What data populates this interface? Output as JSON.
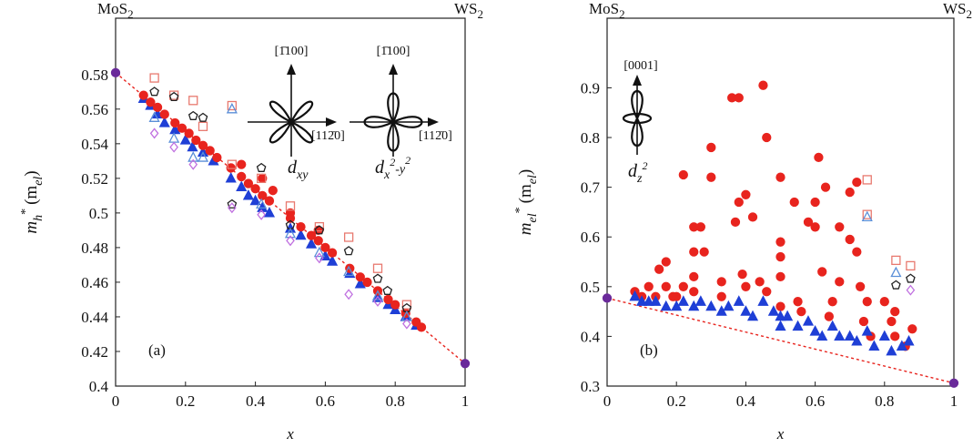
{
  "chart_data": [
    {
      "type": "scatter",
      "panel_label": "(a)",
      "top_left": [
        "MoS",
        "2"
      ],
      "top_right": [
        "WS",
        "2"
      ],
      "xlabel": "x",
      "ylabel": [
        "m",
        "h",
        "*",
        "(m",
        "el",
        ")"
      ],
      "xlim": [
        0,
        1
      ],
      "ylim": [
        0.4,
        0.6125
      ],
      "xticks": [
        0,
        0.2,
        0.4,
        0.6,
        0.8,
        1
      ],
      "yticks": [
        0.4,
        0.42,
        0.44,
        0.46,
        0.48,
        0.5,
        0.52,
        0.54,
        0.56,
        0.58
      ],
      "insets": [
        {
          "up": "[1̄100]",
          "right": "[112̄0]",
          "orbital": [
            "d",
            "xy"
          ]
        },
        {
          "up": "[1̄100]",
          "right": "[112̄0]",
          "orbital": [
            "d",
            "x",
            "2",
            "-y",
            "2"
          ]
        }
      ],
      "series": [
        {
          "marker": "line",
          "color": "#e8241e",
          "x": [
            0,
            1
          ],
          "values": [
            0.581,
            0.413
          ]
        },
        {
          "marker": "triangle",
          "color": "#1f3fd6",
          "filled": true,
          "x": [
            0.08,
            0.1,
            0.12,
            0.14,
            0.17,
            0.2,
            0.22,
            0.25,
            0.28,
            0.33,
            0.36,
            0.38,
            0.4,
            0.42,
            0.44,
            0.5,
            0.53,
            0.56,
            0.6,
            0.62,
            0.67,
            0.7,
            0.75,
            0.78,
            0.8,
            0.83,
            0.86
          ],
          "values": [
            0.566,
            0.562,
            0.557,
            0.552,
            0.548,
            0.542,
            0.538,
            0.535,
            0.53,
            0.52,
            0.515,
            0.51,
            0.507,
            0.503,
            0.5,
            0.491,
            0.487,
            0.482,
            0.475,
            0.472,
            0.465,
            0.459,
            0.451,
            0.447,
            0.444,
            0.44,
            0.435
          ]
        },
        {
          "marker": "circle",
          "color": "#e8241e",
          "filled": true,
          "x": [
            0.08,
            0.1,
            0.12,
            0.14,
            0.17,
            0.19,
            0.21,
            0.23,
            0.25,
            0.27,
            0.29,
            0.33,
            0.36,
            0.36,
            0.38,
            0.4,
            0.42,
            0.42,
            0.44,
            0.45,
            0.5,
            0.5,
            0.53,
            0.56,
            0.58,
            0.58,
            0.6,
            0.62,
            0.67,
            0.7,
            0.72,
            0.75,
            0.78,
            0.8,
            0.83,
            0.86,
            0.875
          ],
          "values": [
            0.568,
            0.564,
            0.561,
            0.557,
            0.552,
            0.549,
            0.546,
            0.542,
            0.539,
            0.536,
            0.532,
            0.526,
            0.521,
            0.528,
            0.517,
            0.514,
            0.51,
            0.52,
            0.507,
            0.513,
            0.497,
            0.5,
            0.492,
            0.487,
            0.484,
            0.49,
            0.48,
            0.477,
            0.468,
            0.463,
            0.46,
            0.455,
            0.45,
            0.447,
            0.442,
            0.437,
            0.434
          ]
        },
        {
          "marker": "square",
          "color": "#e8796f",
          "x": [
            0.111,
            0.167,
            0.222,
            0.25,
            0.333,
            0.333,
            0.417,
            0.5,
            0.583,
            0.667,
            0.75,
            0.833
          ],
          "values": [
            0.578,
            0.568,
            0.565,
            0.55,
            0.562,
            0.528,
            0.52,
            0.504,
            0.492,
            0.486,
            0.468,
            0.447
          ]
        },
        {
          "marker": "pentagon",
          "color": "#222222",
          "x": [
            0.111,
            0.167,
            0.222,
            0.25,
            0.333,
            0.417,
            0.5,
            0.583,
            0.667,
            0.75,
            0.778,
            0.833
          ],
          "values": [
            0.57,
            0.567,
            0.556,
            0.555,
            0.505,
            0.526,
            0.493,
            0.49,
            0.478,
            0.462,
            0.455,
            0.445
          ]
        },
        {
          "marker": "triangle",
          "color": "#5b8fd8",
          "x": [
            0.111,
            0.167,
            0.222,
            0.25,
            0.333,
            0.417,
            0.5,
            0.583,
            0.667,
            0.75,
            0.833
          ],
          "values": [
            0.555,
            0.543,
            0.532,
            0.532,
            0.56,
            0.505,
            0.488,
            0.477,
            0.466,
            0.452,
            0.44
          ]
        },
        {
          "marker": "diamond",
          "color": "#c070e0",
          "x": [
            0.111,
            0.167,
            0.222,
            0.333,
            0.417,
            0.5,
            0.583,
            0.667,
            0.75,
            0.833
          ],
          "values": [
            0.546,
            0.538,
            0.528,
            0.503,
            0.499,
            0.484,
            0.474,
            0.453,
            0.449,
            0.436
          ]
        },
        {
          "marker": "circle",
          "color": "#6a2a9a",
          "filled": true,
          "x": [
            0,
            1
          ],
          "values": [
            0.581,
            0.413
          ]
        }
      ]
    },
    {
      "type": "scatter",
      "panel_label": "(b)",
      "top_left": [
        "MoS",
        "2"
      ],
      "top_right": [
        "WS",
        "2"
      ],
      "xlabel": "x",
      "ylabel": [
        "m",
        "el",
        "*",
        "(m",
        "el",
        ")"
      ],
      "xlim": [
        0,
        1
      ],
      "ylim": [
        0.3,
        1.04
      ],
      "xticks": [
        0,
        0.2,
        0.4,
        0.6,
        0.8,
        1
      ],
      "yticks": [
        0.3,
        0.4,
        0.5,
        0.6,
        0.7,
        0.8,
        0.9
      ],
      "insets": [
        {
          "up": "[0001]",
          "orbital": [
            "d",
            "z",
            "2"
          ]
        }
      ],
      "series": [
        {
          "marker": "line",
          "color": "#e8241e",
          "x": [
            0,
            1
          ],
          "values": [
            0.477,
            0.306
          ]
        },
        {
          "marker": "circle",
          "color": "#e8241e",
          "filled": true,
          "x": [
            0.08,
            0.1,
            0.12,
            0.14,
            0.15,
            0.17,
            0.17,
            0.19,
            0.2,
            0.22,
            0.22,
            0.25,
            0.25,
            0.25,
            0.25,
            0.27,
            0.28,
            0.3,
            0.3,
            0.33,
            0.33,
            0.36,
            0.38,
            0.37,
            0.38,
            0.39,
            0.4,
            0.4,
            0.42,
            0.44,
            0.45,
            0.46,
            0.46,
            0.5,
            0.5,
            0.5,
            0.5,
            0.5,
            0.54,
            0.55,
            0.56,
            0.58,
            0.6,
            0.6,
            0.61,
            0.62,
            0.63,
            0.64,
            0.65,
            0.67,
            0.67,
            0.7,
            0.7,
            0.72,
            0.72,
            0.73,
            0.74,
            0.75,
            0.76,
            0.8,
            0.82,
            0.83,
            0.83,
            0.86,
            0.88
          ],
          "values": [
            0.49,
            0.48,
            0.5,
            0.48,
            0.535,
            0.55,
            0.5,
            0.48,
            0.48,
            0.725,
            0.5,
            0.62,
            0.57,
            0.52,
            0.49,
            0.62,
            0.57,
            0.78,
            0.72,
            0.51,
            0.48,
            0.88,
            0.88,
            0.63,
            0.67,
            0.525,
            0.685,
            0.5,
            0.64,
            0.51,
            0.905,
            0.8,
            0.49,
            0.72,
            0.59,
            0.56,
            0.52,
            0.46,
            0.67,
            0.47,
            0.45,
            0.63,
            0.67,
            0.62,
            0.76,
            0.53,
            0.7,
            0.44,
            0.47,
            0.62,
            0.51,
            0.595,
            0.69,
            0.71,
            0.57,
            0.5,
            0.43,
            0.47,
            0.4,
            0.47,
            0.43,
            0.45,
            0.4,
            0.38,
            0.415
          ]
        },
        {
          "marker": "triangle",
          "color": "#1f3fd6",
          "filled": true,
          "x": [
            0.08,
            0.1,
            0.12,
            0.14,
            0.17,
            0.2,
            0.22,
            0.25,
            0.27,
            0.3,
            0.33,
            0.35,
            0.38,
            0.4,
            0.42,
            0.45,
            0.48,
            0.5,
            0.5,
            0.52,
            0.55,
            0.58,
            0.6,
            0.62,
            0.65,
            0.67,
            0.7,
            0.72,
            0.75,
            0.77,
            0.8,
            0.82,
            0.85,
            0.87
          ],
          "values": [
            0.48,
            0.47,
            0.47,
            0.47,
            0.46,
            0.46,
            0.47,
            0.46,
            0.47,
            0.46,
            0.45,
            0.46,
            0.47,
            0.45,
            0.44,
            0.47,
            0.45,
            0.44,
            0.42,
            0.44,
            0.42,
            0.43,
            0.41,
            0.4,
            0.42,
            0.4,
            0.4,
            0.39,
            0.41,
            0.38,
            0.4,
            0.37,
            0.38,
            0.39
          ]
        },
        {
          "marker": "square",
          "color": "#e8796f",
          "x": [
            0.75,
            0.75,
            0.833,
            0.875
          ],
          "values": [
            0.715,
            0.645,
            0.553,
            0.542
          ]
        },
        {
          "marker": "triangle",
          "color": "#5b8fd8",
          "x": [
            0.75,
            0.833
          ],
          "values": [
            0.64,
            0.528
          ]
        },
        {
          "marker": "pentagon",
          "color": "#222222",
          "x": [
            0.833,
            0.875
          ],
          "values": [
            0.503,
            0.516
          ]
        },
        {
          "marker": "diamond",
          "color": "#c070e0",
          "x": [
            0.875
          ],
          "values": [
            0.493
          ]
        },
        {
          "marker": "circle",
          "color": "#6a2a9a",
          "filled": true,
          "x": [
            0,
            1
          ],
          "values": [
            0.477,
            0.306
          ]
        }
      ]
    }
  ]
}
